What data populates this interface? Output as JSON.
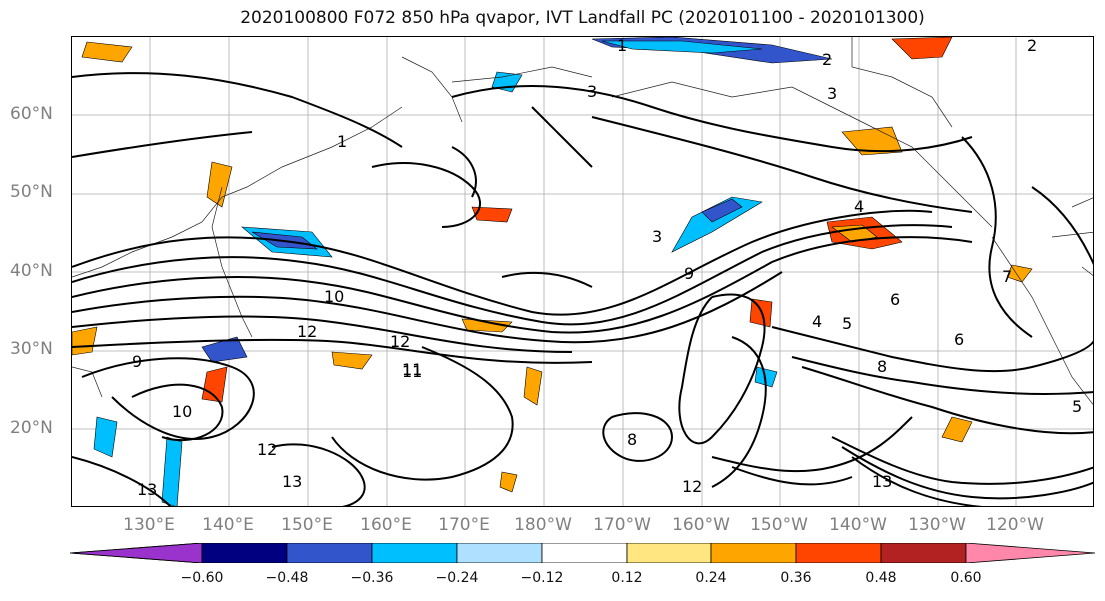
{
  "title": "2020100800 F072 850 hPa qvapor, IVT Landfall PC (2020101100 - 2020101300)",
  "lat_labels": [
    "60°N",
    "50°N",
    "40°N",
    "30°N",
    "20°N"
  ],
  "lon_labels": [
    "130°E",
    "140°E",
    "150°E",
    "160°E",
    "170°E",
    "180°W",
    "170°W",
    "160°W",
    "150°W",
    "140°W",
    "130°W",
    "120°W"
  ],
  "colorbar": {
    "colors": [
      "#9933cc",
      "#000080",
      "#3355cc",
      "#00bfff",
      "#b0e0ff",
      "#ffffff",
      "#ffe680",
      "#ffa500",
      "#ff4500",
      "#b22222",
      "#ff88aa"
    ],
    "tick_labels": [
      "−0.60",
      "−0.48",
      "−0.36",
      "−0.24",
      "−0.12",
      "0.12",
      "0.24",
      "0.36",
      "0.48",
      "0.60"
    ]
  },
  "contour_labels": [
    "1",
    "2",
    "3",
    "3",
    "4",
    "5",
    "6",
    "6",
    "8",
    "9",
    "10",
    "11",
    "12",
    "12",
    "13",
    "13",
    "12",
    "11",
    "1",
    "2",
    "4",
    "7",
    "8",
    "9",
    "10",
    "12",
    "13",
    "3",
    "5"
  ],
  "icons": {
    "grid": "graticule-lines",
    "land": "coastline-outline"
  }
}
